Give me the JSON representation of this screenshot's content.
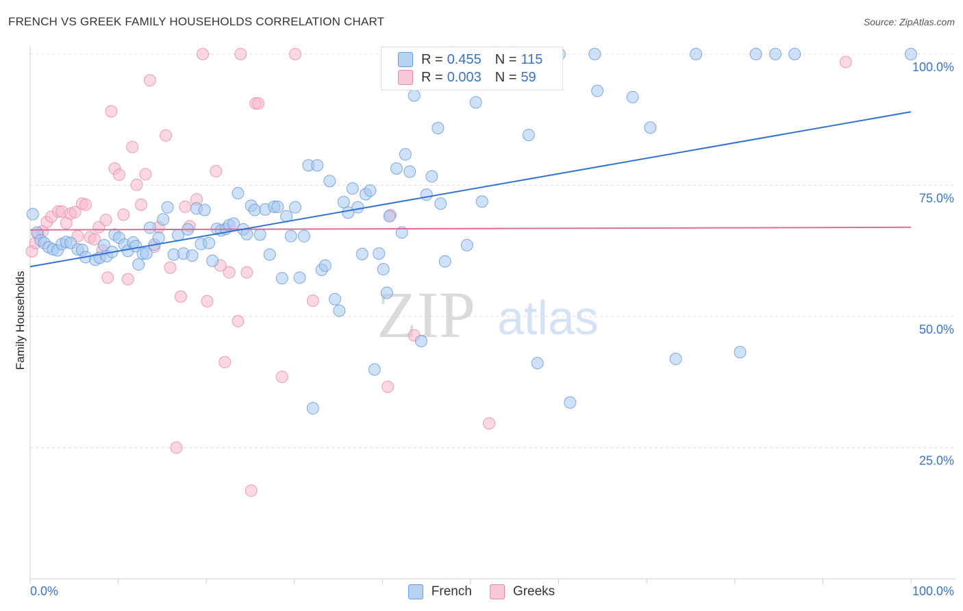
{
  "title": "FRENCH VS GREEK FAMILY HOUSEHOLDS CORRELATION CHART",
  "source": "Source: ZipAtlas.com",
  "watermark": {
    "zip": "ZIP",
    "atlas": "atlas"
  },
  "legend": {
    "r_label": "R =",
    "n_label": "N =",
    "french": {
      "r": "0.455",
      "n": "115"
    },
    "greeks": {
      "r": "0.003",
      "n": "59"
    }
  },
  "colors": {
    "french_fill": "#a8c8f0",
    "french_stroke": "#6a9ad8",
    "french_line": "#2f72d0",
    "greeks_fill": "#f6b8cc",
    "greeks_stroke": "#e888a8",
    "greeks_line": "#e06a94",
    "tick_text": "#3a72c4",
    "grid": "#dddddd"
  },
  "chart_data": {
    "type": "scatter",
    "title": "FRENCH VS GREEK FAMILY HOUSEHOLDS CORRELATION CHART",
    "xlabel": "",
    "ylabel": "Family Households",
    "xlim": [
      0,
      100
    ],
    "ylim": [
      0,
      100
    ],
    "x_tick_labels": [
      "0.0%",
      "100.0%"
    ],
    "y_ticks": [
      25,
      50,
      75,
      100
    ],
    "y_tick_labels": [
      "25.0%",
      "50.0%",
      "75.0%",
      "100.0%"
    ],
    "grid": true,
    "legend_position": "bottom-center",
    "series": [
      {
        "name": "French",
        "r": 0.455,
        "n": 115,
        "trend": {
          "x": [
            0,
            100
          ],
          "y": [
            59.5,
            89.0
          ]
        },
        "points": [
          [
            0.3,
            69.5
          ],
          [
            0.8,
            66.0
          ],
          [
            1.2,
            64.5
          ],
          [
            1.6,
            64.0
          ],
          [
            2.1,
            63.2
          ],
          [
            2.6,
            62.8
          ],
          [
            3.1,
            62.6
          ],
          [
            3.6,
            63.8
          ],
          [
            4.1,
            64.2
          ],
          [
            4.6,
            64.0
          ],
          [
            5.4,
            62.8
          ],
          [
            5.9,
            62.7
          ],
          [
            6.3,
            61.3
          ],
          [
            7.4,
            60.8
          ],
          [
            7.9,
            61.2
          ],
          [
            8.4,
            63.6
          ],
          [
            8.7,
            61.5
          ],
          [
            9.3,
            62.3
          ],
          [
            9.6,
            65.6
          ],
          [
            10.1,
            65.0
          ],
          [
            10.7,
            63.7
          ],
          [
            11.1,
            62.5
          ],
          [
            11.7,
            64.1
          ],
          [
            12.0,
            63.4
          ],
          [
            12.3,
            59.9
          ],
          [
            12.8,
            62.0
          ],
          [
            13.2,
            62.0
          ],
          [
            13.6,
            66.9
          ],
          [
            14.1,
            63.7
          ],
          [
            14.6,
            65.0
          ],
          [
            15.1,
            68.5
          ],
          [
            15.6,
            70.8
          ],
          [
            16.3,
            61.8
          ],
          [
            16.8,
            65.5
          ],
          [
            17.4,
            62.0
          ],
          [
            17.9,
            66.6
          ],
          [
            18.4,
            61.6
          ],
          [
            18.9,
            70.6
          ],
          [
            19.4,
            63.8
          ],
          [
            19.8,
            70.3
          ],
          [
            20.3,
            64.0
          ],
          [
            20.7,
            60.6
          ],
          [
            21.2,
            66.7
          ],
          [
            21.7,
            66.4
          ],
          [
            22.2,
            66.7
          ],
          [
            22.6,
            67.4
          ],
          [
            23.1,
            67.7
          ],
          [
            23.6,
            73.5
          ],
          [
            24.2,
            66.6
          ],
          [
            24.6,
            65.7
          ],
          [
            25.1,
            71.1
          ],
          [
            25.5,
            70.3
          ],
          [
            26.1,
            65.6
          ],
          [
            26.7,
            70.4
          ],
          [
            27.2,
            61.8
          ],
          [
            27.7,
            70.9
          ],
          [
            28.1,
            70.9
          ],
          [
            28.6,
            57.3
          ],
          [
            29.1,
            69.1
          ],
          [
            29.6,
            65.3
          ],
          [
            30.1,
            70.8
          ],
          [
            30.6,
            57.4
          ],
          [
            31.1,
            65.3
          ],
          [
            31.6,
            78.8
          ],
          [
            32.1,
            32.5
          ],
          [
            32.6,
            78.8
          ],
          [
            33.1,
            58.9
          ],
          [
            33.5,
            59.7
          ],
          [
            34.0,
            75.8
          ],
          [
            34.6,
            53.3
          ],
          [
            35.1,
            51.1
          ],
          [
            35.6,
            71.8
          ],
          [
            36.1,
            69.8
          ],
          [
            36.6,
            74.4
          ],
          [
            37.2,
            70.8
          ],
          [
            37.7,
            61.9
          ],
          [
            38.1,
            73.3
          ],
          [
            38.6,
            74.0
          ],
          [
            39.1,
            39.9
          ],
          [
            39.6,
            62.0
          ],
          [
            40.1,
            59.0
          ],
          [
            40.5,
            54.5
          ],
          [
            40.8,
            69.1
          ],
          [
            41.6,
            78.2
          ],
          [
            42.2,
            66.0
          ],
          [
            42.6,
            80.9
          ],
          [
            43.1,
            77.6
          ],
          [
            43.6,
            92.1
          ],
          [
            44.4,
            45.3
          ],
          [
            45.0,
            73.2
          ],
          [
            45.6,
            76.7
          ],
          [
            46.3,
            85.9
          ],
          [
            46.6,
            71.5
          ],
          [
            47.1,
            60.5
          ],
          [
            48.1,
            100.0
          ],
          [
            49.6,
            63.6
          ],
          [
            50.6,
            90.8
          ],
          [
            51.3,
            71.9
          ],
          [
            52.6,
            100.0
          ],
          [
            54.6,
            100.0
          ],
          [
            56.6,
            84.6
          ],
          [
            57.6,
            41.1
          ],
          [
            60.1,
            100.0
          ],
          [
            61.3,
            33.6
          ],
          [
            64.1,
            100.0
          ],
          [
            64.4,
            93.0
          ],
          [
            68.4,
            91.8
          ],
          [
            70.4,
            86.0
          ],
          [
            73.3,
            41.9
          ],
          [
            75.6,
            100.0
          ],
          [
            80.6,
            43.2
          ],
          [
            82.4,
            100.0
          ],
          [
            84.6,
            100.0
          ],
          [
            86.8,
            100.0
          ],
          [
            100.0,
            100.0
          ]
        ]
      },
      {
        "name": "Greeks",
        "r": 0.003,
        "n": 59,
        "trend": {
          "x": [
            0,
            100
          ],
          "y": [
            66.5,
            67.0
          ]
        },
        "points": [
          [
            0.2,
            62.4
          ],
          [
            0.6,
            64.0
          ],
          [
            0.9,
            65.7
          ],
          [
            1.4,
            66.2
          ],
          [
            1.9,
            68.0
          ],
          [
            2.4,
            69.0
          ],
          [
            3.2,
            70.0
          ],
          [
            3.6,
            70.0
          ],
          [
            4.1,
            67.8
          ],
          [
            4.6,
            69.6
          ],
          [
            5.1,
            69.9
          ],
          [
            5.4,
            65.3
          ],
          [
            5.9,
            71.5
          ],
          [
            6.3,
            71.3
          ],
          [
            6.8,
            65.1
          ],
          [
            7.3,
            64.7
          ],
          [
            7.8,
            67.0
          ],
          [
            8.2,
            62.6
          ],
          [
            8.6,
            68.4
          ],
          [
            8.8,
            57.4
          ],
          [
            9.2,
            89.1
          ],
          [
            9.6,
            78.2
          ],
          [
            10.1,
            77.0
          ],
          [
            10.6,
            69.4
          ],
          [
            11.1,
            57.1
          ],
          [
            11.6,
            82.3
          ],
          [
            12.1,
            75.1
          ],
          [
            12.6,
            71.3
          ],
          [
            13.1,
            77.1
          ],
          [
            13.6,
            95.0
          ],
          [
            14.1,
            63.3
          ],
          [
            14.6,
            67.0
          ],
          [
            15.4,
            84.5
          ],
          [
            15.9,
            59.3
          ],
          [
            16.6,
            25.0
          ],
          [
            17.1,
            53.8
          ],
          [
            17.6,
            70.9
          ],
          [
            18.1,
            67.2
          ],
          [
            18.9,
            72.3
          ],
          [
            19.6,
            100.0
          ],
          [
            20.1,
            52.9
          ],
          [
            21.1,
            77.7
          ],
          [
            21.6,
            59.7
          ],
          [
            22.1,
            41.3
          ],
          [
            22.6,
            58.4
          ],
          [
            23.6,
            49.1
          ],
          [
            23.9,
            100.0
          ],
          [
            24.6,
            58.4
          ],
          [
            25.1,
            16.8
          ],
          [
            25.6,
            90.6
          ],
          [
            25.9,
            90.6
          ],
          [
            28.6,
            38.5
          ],
          [
            30.1,
            100.0
          ],
          [
            32.1,
            53.0
          ],
          [
            40.6,
            36.6
          ],
          [
            40.9,
            69.3
          ],
          [
            43.6,
            46.4
          ],
          [
            52.1,
            29.6
          ],
          [
            92.6,
            98.5
          ]
        ]
      }
    ]
  }
}
